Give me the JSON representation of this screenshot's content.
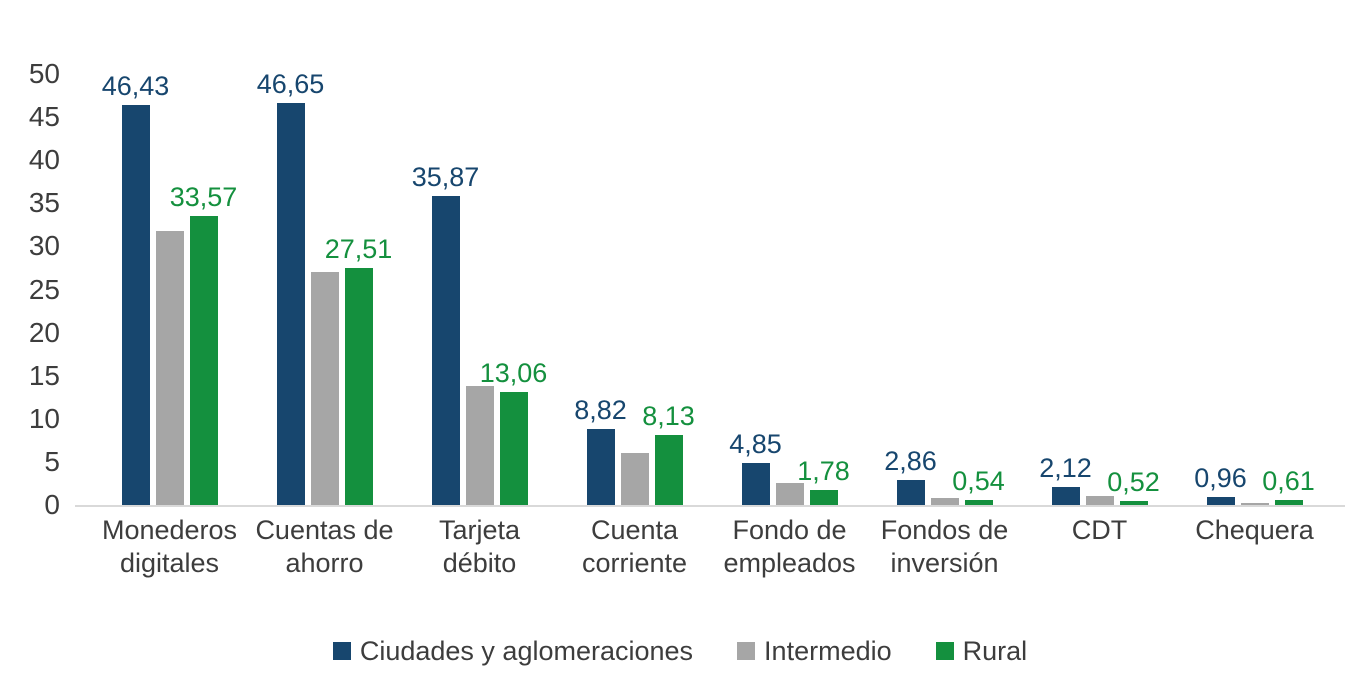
{
  "chart_data": {
    "type": "bar",
    "title": "",
    "xlabel": "",
    "ylabel": "",
    "ylim": [
      0,
      50
    ],
    "ytick_step": 5,
    "yticks": [
      0,
      5,
      10,
      15,
      20,
      25,
      30,
      35,
      40,
      45,
      50
    ],
    "grid": false,
    "legend_position": "bottom",
    "decimal_separator": ",",
    "categories": [
      "Monederos digitales",
      "Cuentas de ahorro",
      "Tarjeta débito",
      "Cuenta corriente",
      "Fondo de empleados",
      "Fondos de inversión",
      "CDT",
      "Chequera"
    ],
    "series": [
      {
        "name": "Ciudades y aglomeraciones",
        "color": "#17466e",
        "show_labels": true,
        "values": [
          46.43,
          46.65,
          35.87,
          8.82,
          4.85,
          2.86,
          2.12,
          0.96
        ],
        "labels": [
          "46,43",
          "46,65",
          "35,87",
          "8,82",
          "4,85",
          "2,86",
          "2,12",
          "0,96"
        ]
      },
      {
        "name": "Intermedio",
        "color": "#a6a6a6",
        "show_labels": false,
        "values_estimated_from_bar_heights": true,
        "values": [
          31.8,
          27.0,
          13.8,
          6.0,
          2.5,
          0.8,
          1.1,
          0.2
        ],
        "labels": null
      },
      {
        "name": "Rural",
        "color": "#14903e",
        "show_labels": true,
        "values": [
          33.57,
          27.51,
          13.06,
          8.13,
          1.78,
          0.54,
          0.52,
          0.61
        ],
        "labels": [
          "33,57",
          "27,51",
          "13,06",
          "8,13",
          "1,78",
          "0,54",
          "0,52",
          "0,61"
        ]
      }
    ],
    "colors": {
      "axis_text": "#3d3d3d",
      "baseline": "#d9d9d9",
      "background": "#ffffff"
    }
  }
}
